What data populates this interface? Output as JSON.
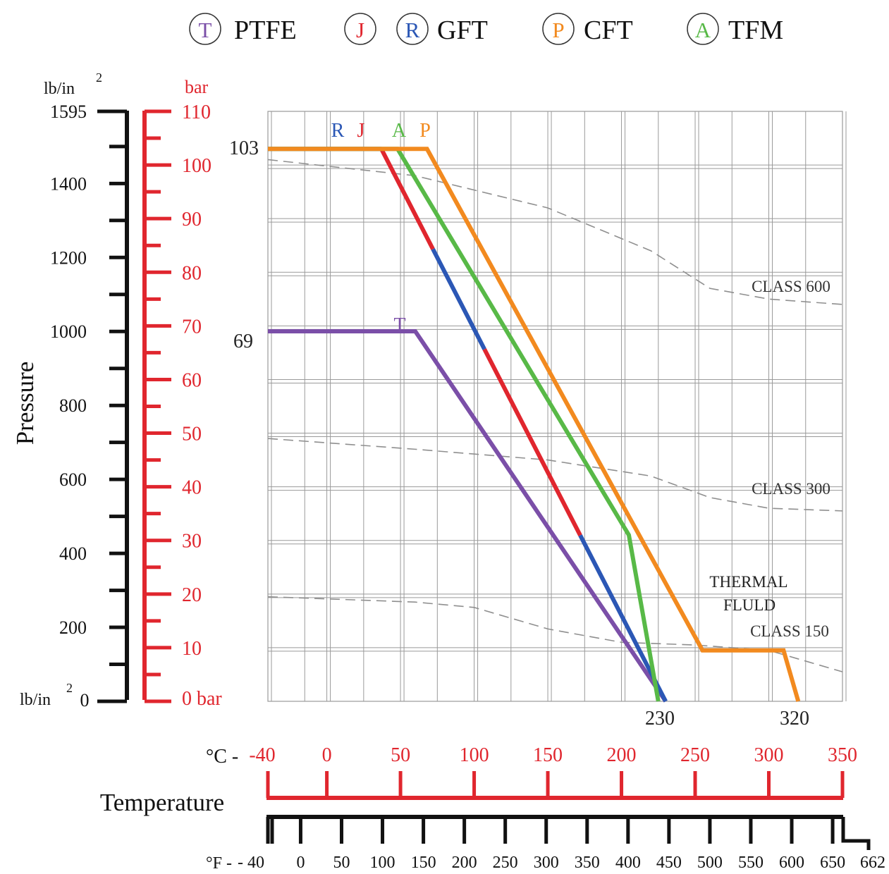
{
  "legend": [
    {
      "symbol": "T",
      "label": "PTFE",
      "symbol_color": "#7b4fa8"
    },
    {
      "symbol": "J",
      "label": "",
      "symbol_color": "#e0262e"
    },
    {
      "symbol": "R",
      "label": "GFT",
      "symbol_color": "#2b57b5"
    },
    {
      "symbol": "P",
      "label": "CFT",
      "symbol_color": "#f28a1f"
    },
    {
      "symbol": "A",
      "label": "TFM",
      "symbol_color": "#58b947"
    }
  ],
  "chart_data": {
    "type": "line",
    "xlabel": "Temperature",
    "ylabel": "Pressure",
    "x_unit_label": "°C -",
    "x2_unit_label": "°F -",
    "y_unit_psi": "lb/in",
    "y_unit_bar": "bar",
    "y_unit_psi_bottom": "lb/in",
    "y_unit_superscript": "2",
    "y_unit_bar_bottom": "0 bar",
    "xlim": [
      -40,
      350
    ],
    "ylim": [
      0,
      110
    ],
    "x_ticks_c": [
      "-40",
      "0",
      "50",
      "100",
      "150",
      "200",
      "250",
      "300",
      "350"
    ],
    "x_tick_values_c": [
      -40,
      0,
      50,
      100,
      150,
      200,
      250,
      300,
      350
    ],
    "x_ticks_f": [
      "- 40",
      "0",
      "50",
      "100",
      "150",
      "200",
      "250",
      "300",
      "350",
      "400",
      "450",
      "500",
      "550",
      "600",
      "650",
      "662"
    ],
    "x_tick_values_f": [
      -40,
      0,
      50,
      100,
      150,
      200,
      250,
      300,
      350,
      400,
      450,
      500,
      550,
      600,
      650,
      662
    ],
    "y_ticks_bar": [
      "110",
      "100",
      "90",
      "80",
      "70",
      "60",
      "50",
      "40",
      "30",
      "20",
      "10"
    ],
    "y_tick_values_bar": [
      110,
      100,
      90,
      80,
      70,
      60,
      50,
      40,
      30,
      20,
      10
    ],
    "y_ticks_psi": [
      "1595",
      "1400",
      "1200",
      "1000",
      "800",
      "600",
      "400",
      "200",
      "0"
    ],
    "y_tick_values_psi": [
      1595,
      1400,
      1200,
      1000,
      800,
      600,
      400,
      200,
      0
    ],
    "series": [
      {
        "symbol": "T",
        "color": "#7b4fa8",
        "x": [
          -40,
          60,
          230
        ],
        "y": [
          69,
          69,
          0
        ]
      },
      {
        "symbol": "RJ",
        "color": "#e0262e",
        "alt_color": "#2b57b5",
        "x": [
          -40,
          37,
          230
        ],
        "y": [
          103,
          103,
          0
        ]
      },
      {
        "symbol": "A",
        "color": "#58b947",
        "x": [
          -40,
          48,
          205,
          225
        ],
        "y": [
          103,
          103,
          31,
          0
        ]
      },
      {
        "symbol": "P",
        "color": "#f28a1f",
        "x": [
          -40,
          68,
          255,
          310,
          320
        ],
        "y": [
          103,
          103,
          9.5,
          9.5,
          0
        ]
      }
    ],
    "curve_labels": [
      {
        "text": "R",
        "color": "#2b57b5"
      },
      {
        "text": "J",
        "color": "#e0262e"
      },
      {
        "text": "A",
        "color": "#58b947"
      },
      {
        "text": "P",
        "color": "#f28a1f"
      },
      {
        "text": "T",
        "color": "#7b4fa8"
      }
    ],
    "reference_curves": [
      {
        "label": "CLASS 600",
        "x": [
          -40,
          60,
          150,
          220,
          260,
          300,
          350
        ],
        "y": [
          101,
          98,
          92,
          84,
          77,
          75,
          74
        ]
      },
      {
        "label": "CLASS 300",
        "x": [
          -40,
          60,
          150,
          220,
          260,
          300,
          350
        ],
        "y": [
          49,
          47,
          45,
          42,
          38,
          36,
          35.5
        ]
      },
      {
        "label": "CLASS 150",
        "x": [
          -40,
          60,
          100,
          150,
          200,
          250,
          300,
          350
        ],
        "y": [
          19.5,
          18.5,
          17.5,
          13.5,
          11,
          10.5,
          9.5,
          5.5
        ]
      }
    ],
    "annotations": [
      {
        "text": "103",
        "kind": "y"
      },
      {
        "text": "69",
        "kind": "y"
      },
      {
        "text": "230",
        "kind": "x"
      },
      {
        "text": "320",
        "kind": "x"
      },
      {
        "text": "THERMAL",
        "kind": "note"
      },
      {
        "text": "FLULD",
        "kind": "note"
      }
    ]
  },
  "colors": {
    "black_axis": "#111111",
    "red_axis": "#e0262e",
    "grid": "#9a9a9a",
    "dashed": "#8f8f8f"
  }
}
